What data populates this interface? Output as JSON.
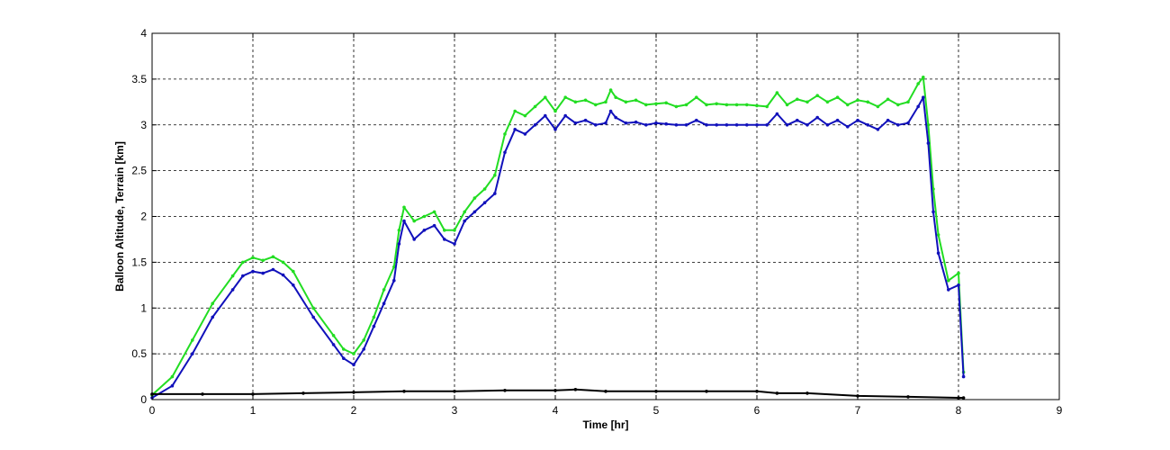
{
  "chart_data": {
    "type": "line",
    "title": "",
    "xlabel": "Time [hr]",
    "ylabel": "Balloon Altitude, Terrain [km]",
    "xlim": [
      0,
      9
    ],
    "ylim": [
      0,
      4
    ],
    "x_ticks": [
      "0",
      "1",
      "2",
      "3",
      "4",
      "5",
      "6",
      "7",
      "8",
      "9"
    ],
    "y_ticks": [
      "0",
      "0.5",
      "1",
      "1.5",
      "2",
      "2.5",
      "3",
      "3.5",
      "4"
    ],
    "grid": true,
    "legend": "none",
    "colors": {
      "green_series": "#22dd22",
      "blue_series": "#1111bb",
      "black_series": "#000000"
    },
    "series": [
      {
        "color_key": "green_series",
        "x": [
          0,
          0.2,
          0.4,
          0.6,
          0.8,
          0.9,
          1.0,
          1.1,
          1.2,
          1.3,
          1.4,
          1.6,
          1.8,
          1.9,
          2.0,
          2.1,
          2.2,
          2.3,
          2.4,
          2.45,
          2.5,
          2.6,
          2.7,
          2.8,
          2.9,
          3.0,
          3.1,
          3.2,
          3.3,
          3.4,
          3.5,
          3.6,
          3.7,
          3.8,
          3.9,
          4.0,
          4.1,
          4.2,
          4.3,
          4.4,
          4.5,
          4.55,
          4.6,
          4.7,
          4.8,
          4.9,
          5.0,
          5.1,
          5.2,
          5.3,
          5.4,
          5.5,
          5.6,
          5.7,
          5.8,
          5.9,
          6.0,
          6.1,
          6.2,
          6.3,
          6.4,
          6.5,
          6.6,
          6.7,
          6.8,
          6.9,
          7.0,
          7.1,
          7.2,
          7.3,
          7.4,
          7.5,
          7.6,
          7.65,
          7.7,
          7.75,
          7.8,
          7.9,
          8.0,
          8.05
        ],
        "y": [
          0.05,
          0.25,
          0.65,
          1.05,
          1.35,
          1.5,
          1.55,
          1.52,
          1.56,
          1.5,
          1.4,
          1.0,
          0.7,
          0.55,
          0.5,
          0.65,
          0.9,
          1.2,
          1.45,
          1.85,
          2.1,
          1.95,
          2.0,
          2.05,
          1.85,
          1.85,
          2.05,
          2.2,
          2.3,
          2.45,
          2.9,
          3.15,
          3.1,
          3.2,
          3.3,
          3.15,
          3.3,
          3.25,
          3.27,
          3.22,
          3.25,
          3.38,
          3.3,
          3.25,
          3.27,
          3.22,
          3.23,
          3.24,
          3.2,
          3.22,
          3.3,
          3.22,
          3.23,
          3.22,
          3.22,
          3.22,
          3.21,
          3.2,
          3.35,
          3.22,
          3.28,
          3.25,
          3.32,
          3.25,
          3.3,
          3.22,
          3.27,
          3.25,
          3.2,
          3.28,
          3.22,
          3.25,
          3.45,
          3.52,
          3.0,
          2.3,
          1.8,
          1.3,
          1.38,
          0.3
        ]
      },
      {
        "color_key": "blue_series",
        "x": [
          0,
          0.2,
          0.4,
          0.6,
          0.8,
          0.9,
          1.0,
          1.1,
          1.2,
          1.3,
          1.4,
          1.6,
          1.8,
          1.9,
          2.0,
          2.1,
          2.2,
          2.3,
          2.4,
          2.45,
          2.5,
          2.6,
          2.7,
          2.8,
          2.9,
          3.0,
          3.1,
          3.2,
          3.3,
          3.4,
          3.5,
          3.6,
          3.7,
          3.8,
          3.9,
          4.0,
          4.1,
          4.2,
          4.3,
          4.4,
          4.5,
          4.55,
          4.6,
          4.7,
          4.8,
          4.9,
          5.0,
          5.1,
          5.2,
          5.3,
          5.4,
          5.5,
          5.6,
          5.7,
          5.8,
          5.9,
          6.0,
          6.1,
          6.2,
          6.3,
          6.4,
          6.5,
          6.6,
          6.7,
          6.8,
          6.9,
          7.0,
          7.1,
          7.2,
          7.3,
          7.4,
          7.5,
          7.6,
          7.65,
          7.7,
          7.75,
          7.8,
          7.9,
          8.0,
          8.05
        ],
        "y": [
          0.02,
          0.15,
          0.5,
          0.9,
          1.2,
          1.35,
          1.4,
          1.38,
          1.42,
          1.36,
          1.25,
          0.9,
          0.6,
          0.45,
          0.38,
          0.55,
          0.8,
          1.05,
          1.3,
          1.7,
          1.95,
          1.75,
          1.85,
          1.9,
          1.75,
          1.7,
          1.95,
          2.05,
          2.15,
          2.25,
          2.7,
          2.95,
          2.9,
          3.0,
          3.1,
          2.95,
          3.1,
          3.02,
          3.05,
          3.0,
          3.02,
          3.15,
          3.08,
          3.02,
          3.03,
          3.0,
          3.02,
          3.01,
          3.0,
          3.0,
          3.05,
          3.0,
          3.0,
          3.0,
          3.0,
          3.0,
          3.0,
          3.0,
          3.12,
          3.0,
          3.05,
          3.0,
          3.08,
          3.0,
          3.05,
          2.98,
          3.05,
          3.0,
          2.95,
          3.05,
          3.0,
          3.02,
          3.2,
          3.3,
          2.8,
          2.05,
          1.6,
          1.2,
          1.25,
          0.25
        ]
      },
      {
        "color_key": "black_series",
        "x": [
          0,
          0.5,
          1.0,
          1.5,
          2.0,
          2.5,
          3.0,
          3.5,
          4.0,
          4.2,
          4.5,
          5.0,
          5.5,
          6.0,
          6.2,
          6.5,
          7.0,
          7.5,
          8.0,
          8.05
        ],
        "y": [
          0.06,
          0.06,
          0.06,
          0.07,
          0.08,
          0.09,
          0.09,
          0.1,
          0.1,
          0.11,
          0.09,
          0.09,
          0.09,
          0.09,
          0.07,
          0.07,
          0.04,
          0.03,
          0.02,
          0.02
        ]
      }
    ]
  }
}
